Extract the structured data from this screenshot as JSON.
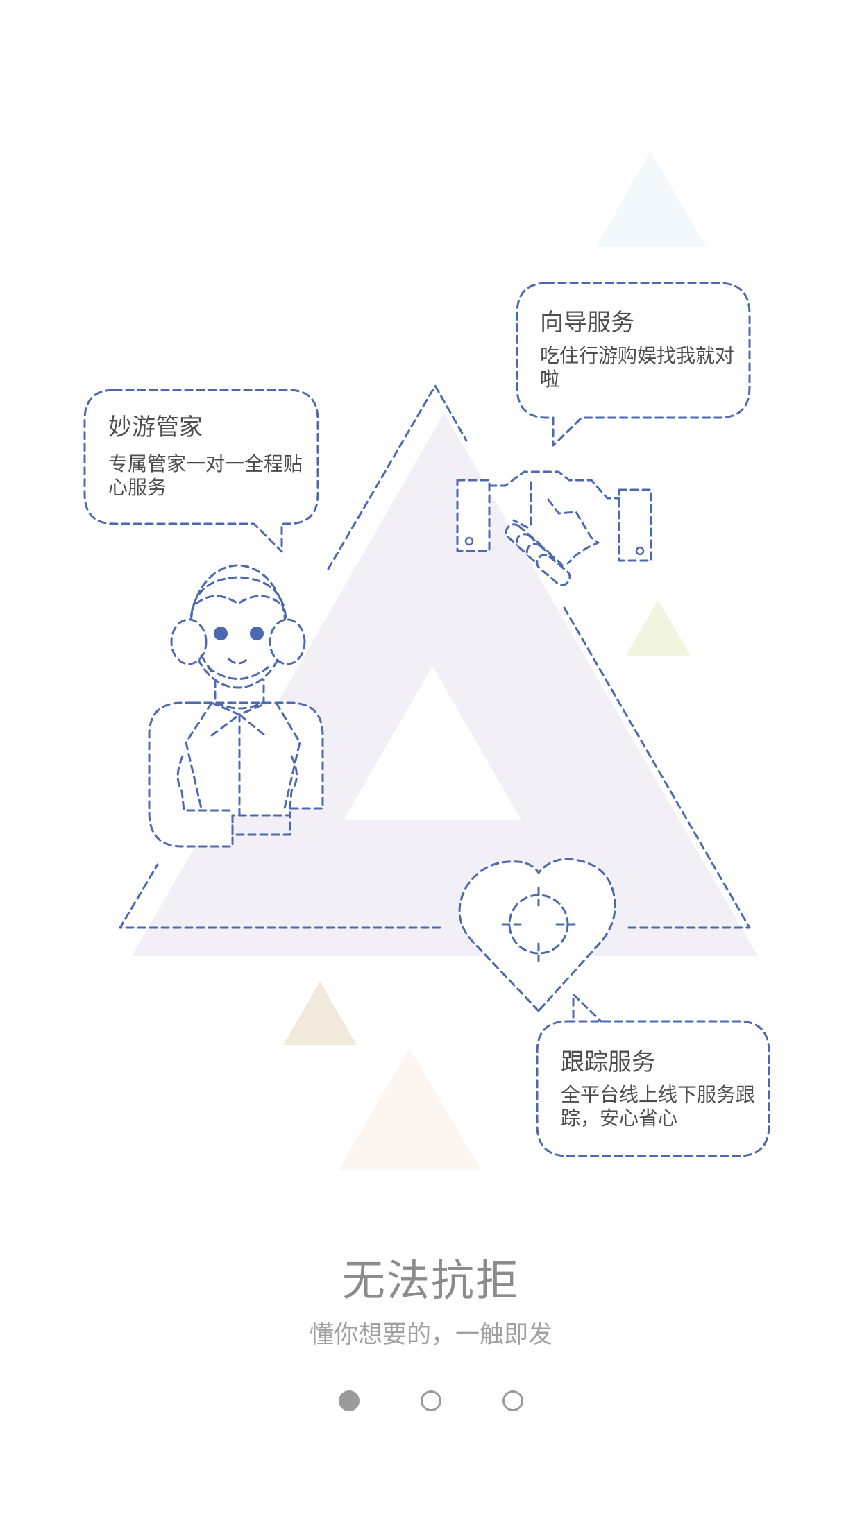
{
  "colors": {
    "line": "#4a69b0",
    "headline": "#8c8c8c",
    "subline": "#a0a0a0",
    "dot": "#9b9b9b",
    "main_triangle": "#f3eff6"
  },
  "bubbles": {
    "butler": {
      "title": "妙游管家",
      "desc": "专属管家一对一全程贴心服务",
      "icon": "butler-icon"
    },
    "guide": {
      "title": "向导服务",
      "desc": "吃住行游购娱找我就对啦",
      "icon": "handshake-icon"
    },
    "tracking": {
      "title": "跟踪服务",
      "desc": "全平台线上线下服务跟踪，安心省心",
      "icon": "heart-target-icon"
    }
  },
  "headline": "无法抗拒",
  "subline": "懂你想要的，一触即发",
  "pager": {
    "count": 3,
    "active_index": 0
  }
}
